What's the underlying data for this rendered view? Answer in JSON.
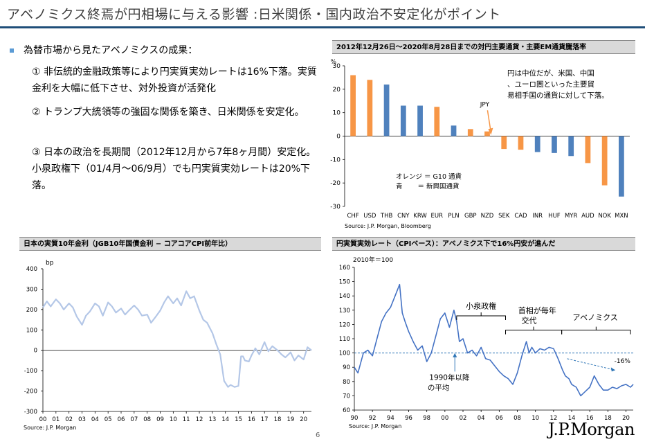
{
  "title": "アベノミクス終焉が円相場に与える影響 :日米関係・国内政治不安定化がポイント",
  "bullet_head": "為替市場から見たアベノミクスの成果：",
  "points": [
    "① 非伝統的金融政策等により円実質実効レートは16%下落。実質金利を大幅に低下させ、対外投資が活発化",
    "② トランプ大統領等の強固な関係を築き、日米関係を安定化。",
    "③ 日本の政治を長期間（2012年12月から7年8ヶ月間）安定化。小泉政権下（01/4月～06/9月）でも円実質実効レートは20%下落。"
  ],
  "page_number": "6",
  "logo": "J.P.Morgan",
  "colors": {
    "navy": "#1f4e79",
    "orange": "#f79646",
    "blue": "#4f81bd",
    "light_blue": "#b4c7e7",
    "line_blue": "#4472c4",
    "dash": "#2e75b6"
  },
  "chart_data": [
    {
      "type": "bar",
      "title": "2012年12月26日～2020年8月28日までの対円主要通貨・主要EM通貨騰落率",
      "ylabel": "%",
      "ylim": [
        -30,
        30
      ],
      "yticks": [
        30,
        20,
        10,
        0,
        -10,
        -20,
        -30
      ],
      "categories": [
        "CHF",
        "USD",
        "THB",
        "CNY",
        "KRW",
        "EUR",
        "PLN",
        "GBP",
        "NZD",
        "SEK",
        "CAD",
        "INR",
        "HUF",
        "MYR",
        "AUD",
        "NOK",
        "MXN"
      ],
      "values": [
        26,
        24,
        22,
        13,
        13,
        12.5,
        4.5,
        3,
        2,
        -5.5,
        -5.8,
        -6.8,
        -7.2,
        -8.5,
        -11.5,
        -21,
        -25.8
      ],
      "groups": [
        "G10",
        "G10",
        "EM",
        "EM",
        "EM",
        "G10",
        "EM",
        "G10",
        "G10",
        "G10",
        "G10",
        "EM",
        "EM",
        "EM",
        "G10",
        "G10",
        "EM"
      ],
      "legend": [
        "オレンジ ＝ G10 通貨",
        "青　　 ＝ 新興国通貨"
      ],
      "annotation": "円は中位だが、米国、中国、ユーロ圏といった主要貿易相手国の通貨に対して下落。",
      "marker_label": "JPY",
      "source": "Source: J.P. Morgan, Bloomberg"
    },
    {
      "type": "line",
      "title": "日本の実質10年金利（JGB10年国債金利 − コアコアCPI前年比）",
      "ylabel": "bp",
      "ylim": [
        -300,
        400
      ],
      "yticks": [
        400,
        300,
        200,
        100,
        0,
        -100,
        -200,
        -300
      ],
      "xticks": [
        "00",
        "01",
        "02",
        "03",
        "04",
        "05",
        "06",
        "07",
        "08",
        "09",
        "10",
        "11",
        "12",
        "13",
        "14",
        "15",
        "16",
        "17",
        "18",
        "19",
        "20"
      ],
      "xlim": [
        2000,
        2020.6
      ],
      "series": [
        {
          "x": [
            2000,
            2000.3,
            2000.6,
            2001,
            2001.3,
            2001.6,
            2002,
            2002.3,
            2002.6,
            2003,
            2003.3,
            2003.6,
            2004,
            2004.3,
            2004.6,
            2005,
            2005.3,
            2005.6,
            2006,
            2006.3,
            2006.6,
            2007,
            2007.3,
            2007.6,
            2008,
            2008.3,
            2008.6,
            2009,
            2009.3,
            2009.6,
            2010,
            2010.3,
            2010.6,
            2011,
            2011.3,
            2011.6,
            2012,
            2012.3,
            2012.6,
            2013,
            2013.3,
            2013.6,
            2013.9,
            2014.2,
            2014.4,
            2014.7,
            2015,
            2015.2,
            2015.35,
            2015.5,
            2015.8,
            2016,
            2016.3,
            2016.6,
            2017,
            2017.3,
            2017.6,
            2018,
            2018.3,
            2018.6,
            2019,
            2019.3,
            2019.6,
            2020,
            2020.3,
            2020.6
          ],
          "y": [
            210,
            240,
            215,
            250,
            230,
            200,
            230,
            210,
            165,
            125,
            170,
            190,
            230,
            215,
            170,
            235,
            215,
            185,
            205,
            175,
            195,
            220,
            200,
            170,
            175,
            135,
            160,
            195,
            235,
            265,
            230,
            255,
            220,
            290,
            255,
            265,
            195,
            150,
            135,
            85,
            30,
            -20,
            -150,
            -180,
            -170,
            -180,
            -175,
            -30,
            -30,
            -50,
            -55,
            -25,
            10,
            -20,
            40,
            -5,
            20,
            0,
            -20,
            -35,
            -10,
            -50,
            -25,
            -45,
            15,
            0
          ]
        }
      ],
      "source": "Source: J.P. Morgan"
    },
    {
      "type": "line",
      "title": "円実質実効レート（CPIベース）：アベノミクス下で16%円安が進んだ",
      "ylabel": "2010年＝100",
      "ylim": [
        60,
        160
      ],
      "yticks": [
        160,
        150,
        140,
        130,
        120,
        110,
        100,
        90,
        80,
        70,
        60
      ],
      "xticks": [
        "90",
        "92",
        "94",
        "96",
        "98",
        "00",
        "02",
        "04",
        "06",
        "08",
        "10",
        "12",
        "14",
        "16",
        "18",
        "20"
      ],
      "xlim": [
        1990,
        2020.8
      ],
      "average": 100,
      "series": [
        {
          "x": [
            1990,
            1990.4,
            1991,
            1991.5,
            1992,
            1992.5,
            1993,
            1993.5,
            1994,
            1994.5,
            1995,
            1995.3,
            1995.6,
            1996,
            1996.5,
            1997,
            1997.5,
            1998,
            1998.5,
            1999,
            1999.5,
            2000,
            2000.5,
            2001,
            2001.3,
            2001.6,
            2002,
            2002.5,
            2003,
            2003.5,
            2004,
            2004.5,
            2005,
            2005.5,
            2006,
            2006.5,
            2007,
            2007.5,
            2008,
            2008.5,
            2009,
            2009.3,
            2009.6,
            2010,
            2010.5,
            2011,
            2011.5,
            2012,
            2012.5,
            2013,
            2013.3,
            2013.7,
            2014,
            2014.5,
            2015,
            2015.5,
            2016,
            2016.5,
            2017,
            2017.5,
            2018,
            2018.5,
            2019,
            2019.5,
            2020,
            2020.5,
            2020.8
          ],
          "y": [
            90,
            86,
            100,
            102,
            98,
            110,
            122,
            128,
            132,
            140,
            148,
            128,
            122,
            115,
            108,
            102,
            105,
            94,
            100,
            112,
            124,
            128,
            118,
            130,
            122,
            108,
            110,
            100,
            102,
            98,
            104,
            96,
            95,
            91,
            87,
            84,
            82,
            78,
            86,
            98,
            108,
            100,
            104,
            100,
            103,
            102,
            104,
            103,
            96,
            88,
            84,
            82,
            78,
            76,
            70,
            73,
            76,
            84,
            78,
            74,
            74,
            76,
            75,
            77,
            78,
            76,
            78
          ]
        }
      ],
      "labels": [
        "小泉政権",
        "首相が毎年",
        "交代",
        "アベノミクス",
        "-16%",
        "1990年以降",
        "の平均"
      ],
      "source": "Source: J.P. Morgan"
    }
  ]
}
